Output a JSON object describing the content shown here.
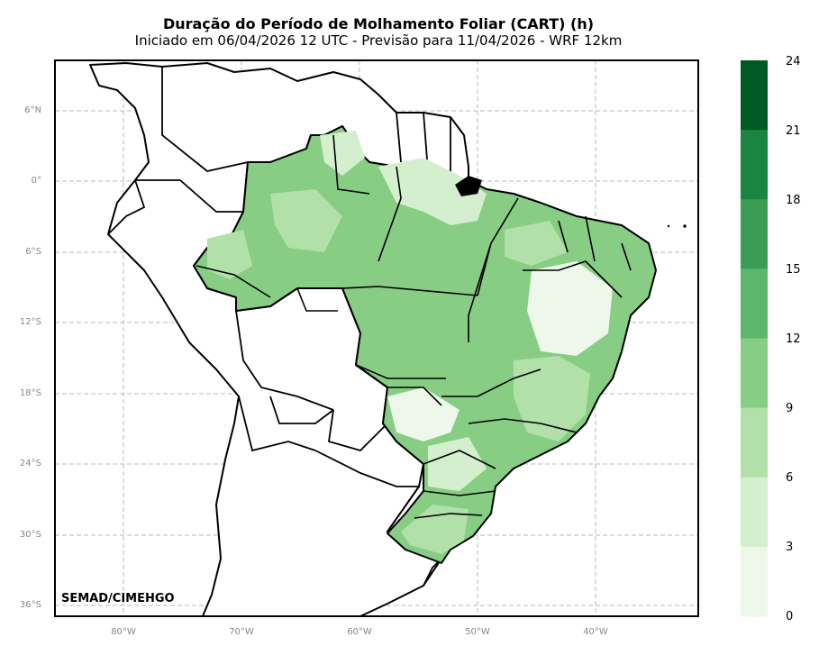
{
  "title": "Duração do Período de Molhamento Foliar (CART) (h)",
  "subtitle": "Iniciado em 06/04/2026 12 UTC - Previsão para 11/04/2026 - WRF 12km",
  "credit": "SEMAD/CIMEHGO",
  "grid": {
    "lat_labels": [
      "6°N",
      "0°",
      "6°S",
      "12°S",
      "18°S",
      "24°S",
      "30°S",
      "36°S"
    ],
    "lon_labels": [
      "80°W",
      "70°W",
      "60°W",
      "50°W",
      "40°W"
    ]
  },
  "colorbar": {
    "ticks": [
      "24",
      "21",
      "18",
      "15",
      "12",
      "9",
      "6",
      "3",
      "0"
    ],
    "colors_top_to_bottom": [
      "#005a24",
      "#1a8540",
      "#3b9d55",
      "#5cb76b",
      "#87cd84",
      "#b2e0a9",
      "#d4efcd",
      "#edf8ea"
    ]
  },
  "colors": {
    "ocean": "#ffffff",
    "country_fill": "#ffffff",
    "border": "#000000",
    "grid": "#b0b0b0"
  }
}
